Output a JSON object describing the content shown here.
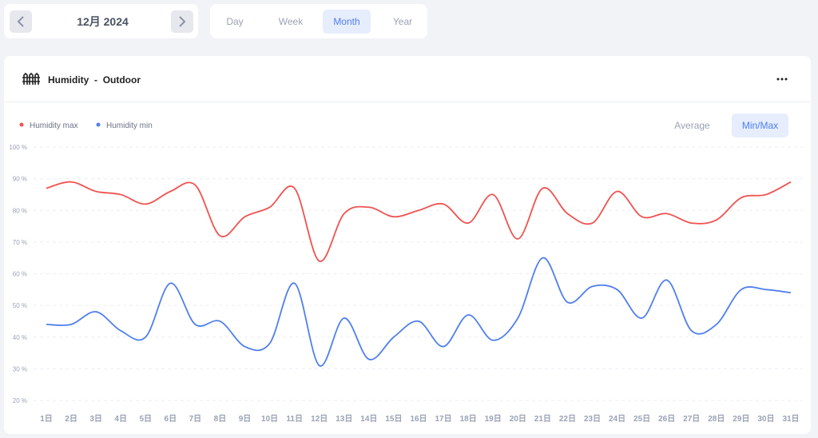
{
  "date_nav": {
    "label": "12月 2024"
  },
  "range_tabs": {
    "items": [
      "Day",
      "Week",
      "Month",
      "Year"
    ],
    "selected_index": 2
  },
  "card": {
    "title": "Humidity",
    "separator": "-",
    "subtitle": "Outdoor"
  },
  "view_toggle": {
    "items": [
      "Average",
      "Min/Max"
    ],
    "selected_index": 1
  },
  "chart_data": {
    "type": "line",
    "categories": [
      "1日",
      "2日",
      "3日",
      "4日",
      "5日",
      "6日",
      "7日",
      "8日",
      "9日",
      "10日",
      "11日",
      "12日",
      "13日",
      "14日",
      "15日",
      "16日",
      "17日",
      "18日",
      "19日",
      "20日",
      "21日",
      "22日",
      "23日",
      "24日",
      "25日",
      "26日",
      "27日",
      "28日",
      "29日",
      "30日",
      "31日"
    ],
    "series": [
      {
        "name": "Humidity max",
        "color": "#ef5350",
        "values": [
          87,
          89,
          86,
          85,
          82,
          86,
          88,
          72,
          78,
          81,
          87,
          64,
          79,
          81,
          78,
          80,
          82,
          76,
          85,
          71,
          87,
          79,
          76,
          86,
          78,
          79,
          76,
          77,
          84,
          85,
          89
        ]
      },
      {
        "name": "Humidity min",
        "color": "#4f7fef",
        "values": [
          44,
          44,
          48,
          42,
          40,
          57,
          44,
          45,
          37,
          38,
          57,
          31,
          46,
          33,
          40,
          45,
          37,
          47,
          39,
          46,
          65,
          51,
          56,
          55,
          46,
          58,
          42,
          44,
          55,
          55,
          54
        ]
      }
    ],
    "ylim": [
      20,
      100
    ],
    "yticks": [
      {
        "value": 20,
        "label": "20 %"
      },
      {
        "value": 30,
        "label": "30 %"
      },
      {
        "value": 40,
        "label": "40 %"
      },
      {
        "value": 50,
        "label": "50 %"
      },
      {
        "value": 60,
        "label": "60 %"
      },
      {
        "value": 70,
        "label": "70 %"
      },
      {
        "value": 80,
        "label": "80 %"
      },
      {
        "value": 90,
        "label": "90 %"
      },
      {
        "value": 100,
        "label": "100 %"
      }
    ],
    "grid": true
  }
}
